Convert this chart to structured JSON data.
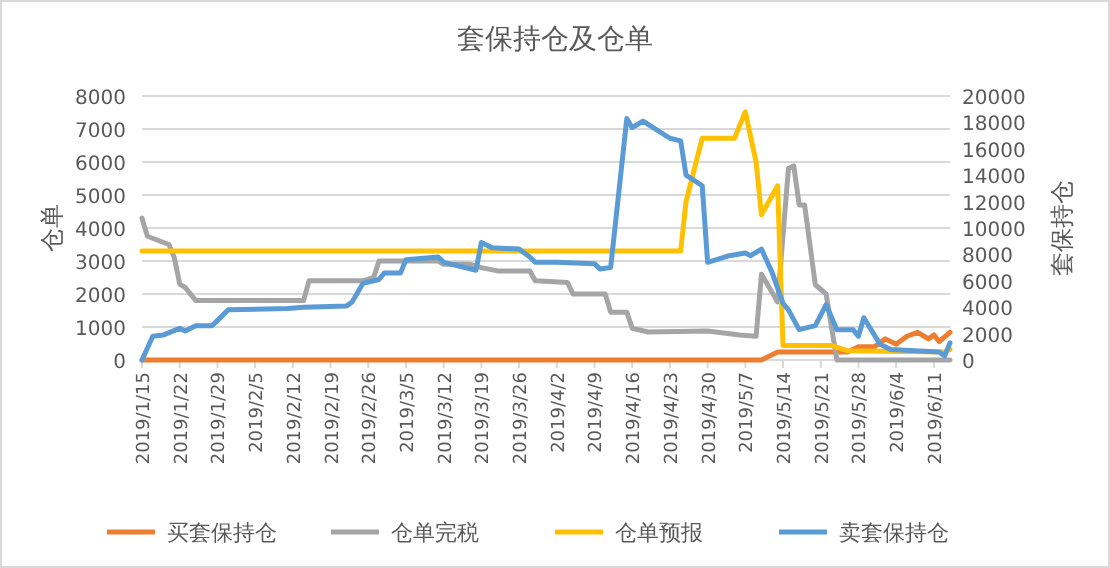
{
  "chart_data": {
    "type": "line",
    "title": "套保持仓及仓单",
    "ylabel": "仓单",
    "y2label": "套保持仓",
    "xlim": [
      "2019-01-15",
      "2019-06-14"
    ],
    "xticks": [
      {
        "value": "2019-01-15",
        "label": "2019/1/15"
      },
      {
        "value": "2019-01-22",
        "label": "2019/1/22"
      },
      {
        "value": "2019-01-29",
        "label": "2019/1/29"
      },
      {
        "value": "2019-02-05",
        "label": "2019/2/5"
      },
      {
        "value": "2019-02-12",
        "label": "2019/2/12"
      },
      {
        "value": "2019-02-19",
        "label": "2019/2/19"
      },
      {
        "value": "2019-02-26",
        "label": "2019/2/26"
      },
      {
        "value": "2019-03-05",
        "label": "2019/3/5"
      },
      {
        "value": "2019-03-12",
        "label": "2019/3/12"
      },
      {
        "value": "2019-03-19",
        "label": "2019/3/19"
      },
      {
        "value": "2019-03-26",
        "label": "2019/3/26"
      },
      {
        "value": "2019-04-02",
        "label": "2019/4/2"
      },
      {
        "value": "2019-04-09",
        "label": "2019/4/9"
      },
      {
        "value": "2019-04-16",
        "label": "2019/4/16"
      },
      {
        "value": "2019-04-23",
        "label": "2019/4/23"
      },
      {
        "value": "2019-04-30",
        "label": "2019/4/30"
      },
      {
        "value": "2019-05-07",
        "label": "2019/5/7"
      },
      {
        "value": "2019-05-14",
        "label": "2019/5/14"
      },
      {
        "value": "2019-05-21",
        "label": "2019/5/21"
      },
      {
        "value": "2019-05-28",
        "label": "2019/5/28"
      },
      {
        "value": "2019-06-04",
        "label": "2019/6/4"
      },
      {
        "value": "2019-06-11",
        "label": "2019/6/11"
      }
    ],
    "ylim": [
      0,
      8000
    ],
    "yticks": [
      0,
      1000,
      2000,
      3000,
      4000,
      5000,
      6000,
      7000,
      8000
    ],
    "y2lim": [
      0,
      20000
    ],
    "y2ticks": [
      0,
      2000,
      4000,
      6000,
      8000,
      10000,
      12000,
      14000,
      16000,
      18000,
      20000
    ],
    "grid": "y",
    "legend": "bottom",
    "marker": "none",
    "line_style": "solid",
    "series": [
      {
        "name": "买套保持仓",
        "color": "#ed7d31",
        "axis": "y2",
        "x": [
          "2019-01-15",
          "2019-05-10",
          "2019-05-13",
          "2019-05-26",
          "2019-05-28",
          "2019-05-31",
          "2019-06-02",
          "2019-06-04",
          "2019-06-06",
          "2019-06-08",
          "2019-06-10",
          "2019-06-11",
          "2019-06-12",
          "2019-06-14"
        ],
        "values": [
          0,
          0,
          600,
          600,
          1000,
          1000,
          1600,
          1200,
          1800,
          2100,
          1600,
          1900,
          1400,
          2100
        ]
      },
      {
        "name": "仓单完税",
        "color": "#a5a5a5",
        "x": [
          "2019-01-15",
          "2019-01-16",
          "2019-01-20",
          "2019-01-21",
          "2019-01-22",
          "2019-01-23",
          "2019-01-25",
          "2019-02-14",
          "2019-02-15",
          "2019-02-25",
          "2019-02-27",
          "2019-02-28",
          "2019-03-11",
          "2019-03-12",
          "2019-03-17",
          "2019-03-19",
          "2019-03-22",
          "2019-03-28",
          "2019-03-29",
          "2019-04-04",
          "2019-04-05",
          "2019-04-11",
          "2019-04-12",
          "2019-04-15",
          "2019-04-16",
          "2019-04-19",
          "2019-04-30",
          "2019-05-06",
          "2019-05-09",
          "2019-05-10",
          "2019-05-13",
          "2019-05-15",
          "2019-05-16",
          "2019-05-17",
          "2019-05-18",
          "2019-05-20",
          "2019-05-22",
          "2019-05-24",
          "2019-06-14"
        ],
        "values": [
          4300,
          3750,
          3500,
          3100,
          2300,
          2200,
          1800,
          1800,
          2400,
          2400,
          2500,
          3000,
          3000,
          2900,
          2900,
          2800,
          2700,
          2700,
          2400,
          2350,
          2000,
          2000,
          1450,
          1450,
          960,
          850,
          880,
          760,
          720,
          2600,
          1760,
          5800,
          5880,
          4700,
          4700,
          2280,
          2000,
          0,
          0
        ]
      },
      {
        "name": "仓单预报",
        "color": "#ffc000",
        "x": [
          "2019-01-15",
          "2019-04-25",
          "2019-04-26",
          "2019-04-29",
          "2019-05-05",
          "2019-05-07",
          "2019-05-09",
          "2019-05-10",
          "2019-05-13",
          "2019-05-14",
          "2019-05-23",
          "2019-05-26",
          "2019-06-13",
          "2019-06-14"
        ],
        "values": [
          3300,
          3300,
          4800,
          6720,
          6720,
          7520,
          6000,
          4400,
          5280,
          440,
          440,
          280,
          240,
          320
        ]
      },
      {
        "name": "卖套保持仓",
        "color": "#5b9bd5",
        "axis": "y2",
        "x": [
          "2019-01-15",
          "2019-01-17",
          "2019-01-19",
          "2019-01-22",
          "2019-01-23",
          "2019-01-25",
          "2019-01-28",
          "2019-01-31",
          "2019-02-11",
          "2019-02-14",
          "2019-02-22",
          "2019-02-23",
          "2019-02-25",
          "2019-02-28",
          "2019-03-01",
          "2019-03-04",
          "2019-03-05",
          "2019-03-11",
          "2019-03-12",
          "2019-03-18",
          "2019-03-19",
          "2019-03-21",
          "2019-03-26",
          "2019-03-28",
          "2019-03-29",
          "2019-04-02",
          "2019-04-09",
          "2019-04-10",
          "2019-04-12",
          "2019-04-15",
          "2019-04-16",
          "2019-04-18",
          "2019-04-23",
          "2019-04-25",
          "2019-04-26",
          "2019-04-29",
          "2019-04-30",
          "2019-05-04",
          "2019-05-07",
          "2019-05-08",
          "2019-05-10",
          "2019-05-12",
          "2019-05-14",
          "2019-05-15",
          "2019-05-17",
          "2019-05-20",
          "2019-05-22",
          "2019-05-24",
          "2019-05-27",
          "2019-05-28",
          "2019-05-29",
          "2019-06-01",
          "2019-06-03",
          "2019-06-12",
          "2019-06-13",
          "2019-06-14"
        ],
        "values": [
          0,
          1800,
          1900,
          2400,
          2200,
          2600,
          2600,
          3800,
          3900,
          4000,
          4100,
          4400,
          5800,
          6100,
          6600,
          6600,
          7600,
          7800,
          7400,
          6800,
          8900,
          8500,
          8400,
          7800,
          7400,
          7400,
          7300,
          6900,
          7000,
          18300,
          17600,
          18100,
          16800,
          16600,
          14000,
          13200,
          7400,
          7900,
          8100,
          7900,
          8400,
          6600,
          4300,
          3800,
          2300,
          2600,
          4200,
          2300,
          2300,
          1800,
          3200,
          1200,
          800,
          600,
          300,
          1300
        ]
      }
    ]
  }
}
